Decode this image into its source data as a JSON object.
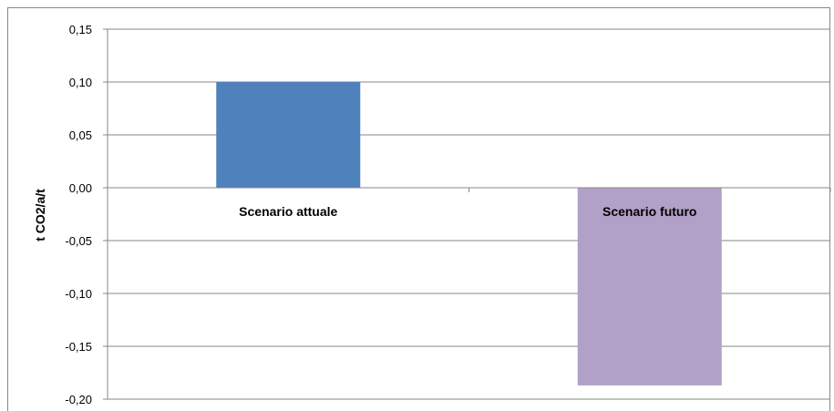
{
  "chart_data": {
    "type": "bar",
    "categories": [
      "Scenario attuale",
      "Scenario futuro"
    ],
    "values": [
      0.1,
      -0.187
    ],
    "ylabel": "t CO2/a/t",
    "ylim": [
      -0.2,
      0.15
    ],
    "yticks": [
      "0,15",
      "0,10",
      "0,05",
      "0,00",
      "-0,05",
      "-0,10",
      "-0,15",
      "-0,20"
    ],
    "ytick_values": [
      0.15,
      0.1,
      0.05,
      0.0,
      -0.05,
      -0.1,
      -0.15,
      -0.2
    ],
    "grid": true,
    "legend": "none",
    "colors": [
      "#4f81bd",
      "#b1a0c7"
    ]
  }
}
